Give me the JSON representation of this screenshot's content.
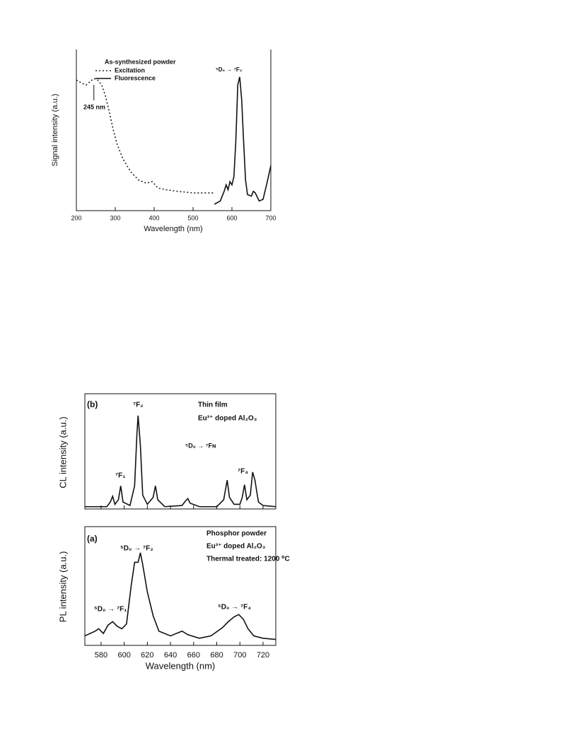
{
  "chart_data": [
    {
      "type": "line",
      "title": "As-synthesized powder",
      "xlabel": "Wavelength (nm)",
      "ylabel": "Signal  intensity (a.u.)",
      "xlim": [
        200,
        700
      ],
      "xticks": [
        200,
        300,
        400,
        500,
        600,
        700
      ],
      "ylim": [
        0,
        100
      ],
      "legend": "top-left",
      "annotations": [
        "245 nm",
        "⁵D₀ → ⁷F₂"
      ],
      "series": [
        {
          "name": "Excitation",
          "color": "#222222",
          "style": "dotted",
          "x": [
            200,
            215,
            225,
            235,
            245,
            255,
            265,
            275,
            285,
            295,
            305,
            320,
            340,
            360,
            380,
            395,
            410,
            430,
            460,
            500,
            555
          ],
          "values": [
            81,
            79,
            78,
            80,
            82,
            81,
            78,
            71,
            61,
            50,
            41,
            32,
            24,
            19,
            17,
            18,
            14,
            13,
            12,
            11,
            11
          ]
        },
        {
          "name": "Fluorescence",
          "color": "#111111",
          "style": "solid",
          "x": [
            555,
            570,
            580,
            585,
            590,
            595,
            600,
            605,
            610,
            615,
            620,
            625,
            630,
            635,
            640,
            650,
            655,
            660,
            670,
            680,
            690,
            700
          ],
          "values": [
            4,
            6,
            12,
            16,
            13,
            18,
            16,
            21,
            43,
            78,
            83,
            69,
            43,
            19,
            10,
            9,
            12,
            11,
            6,
            7,
            17,
            28
          ]
        }
      ]
    },
    {
      "type": "line",
      "xlabel": null,
      "ylabel": "CL intensity (a.u.)",
      "xlim": [
        566,
        731
      ],
      "xticks": [
        580,
        600,
        620,
        640,
        660,
        680,
        700,
        720
      ],
      "show_tick_labels": false,
      "ylim": [
        0,
        100
      ],
      "annotations": [
        "(b)",
        "⁷F₂",
        "Thin film",
        "Eu³⁺ doped Al₂O₃",
        "⁵D₀ → ⁷Fɴ",
        "⁷F₁",
        "⁷F₄"
      ],
      "series": [
        {
          "color": "#111111",
          "style": "solid",
          "x": [
            566,
            585,
            588,
            590,
            592,
            595,
            597,
            599,
            605,
            609,
            611,
            612,
            614,
            616,
            620,
            625,
            627,
            629,
            635,
            650,
            653,
            655,
            657,
            665,
            680,
            686,
            689,
            691,
            695,
            700,
            702,
            704,
            706,
            709,
            711,
            713,
            716,
            720,
            731
          ],
          "values": [
            2,
            2,
            6,
            11,
            4,
            8,
            20,
            6,
            3,
            20,
            65,
            81,
            55,
            12,
            4,
            10,
            20,
            8,
            2,
            3,
            7,
            9,
            5,
            2,
            2,
            8,
            25,
            10,
            4,
            4,
            10,
            21,
            8,
            12,
            32,
            25,
            6,
            3,
            2
          ]
        }
      ]
    },
    {
      "type": "line",
      "xlabel": "Wavelength (nm)",
      "ylabel": "PL intensity (a.u.)",
      "xlim": [
        566,
        731
      ],
      "xticks": [
        580,
        600,
        620,
        640,
        660,
        680,
        700,
        720
      ],
      "show_tick_labels": true,
      "ylim": [
        0,
        100
      ],
      "annotations": [
        "(a)",
        "Phosphor powder",
        "Eu³⁺ doped Al₂O₃",
        "Thermal treated: 1200 ⁰C",
        "⁵D₀ → ⁷F₂",
        "⁵D₀ → ⁷F₁",
        "⁵D₀ → ⁷F₄"
      ],
      "series": [
        {
          "color": "#111111",
          "style": "solid",
          "x": [
            566,
            575,
            578,
            582,
            586,
            590,
            594,
            598,
            602,
            606,
            609,
            612,
            614,
            616,
            620,
            625,
            630,
            640,
            650,
            655,
            665,
            675,
            685,
            690,
            695,
            699,
            703,
            707,
            712,
            720,
            731
          ],
          "values": [
            8,
            12,
            14,
            10,
            17,
            20,
            16,
            14,
            18,
            50,
            70,
            70,
            78,
            68,
            45,
            25,
            12,
            8,
            12,
            9,
            6,
            8,
            15,
            20,
            24,
            26,
            22,
            14,
            8,
            6,
            5
          ]
        }
      ]
    }
  ]
}
